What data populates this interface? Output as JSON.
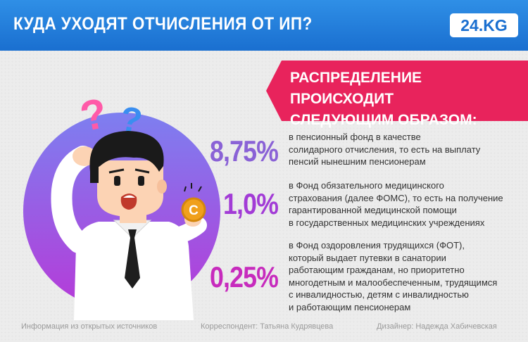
{
  "header": {
    "title": "КУДА УХОДЯТ ОТЧИСЛЕНИЯ ОТ ИП?",
    "logo": "24.KG"
  },
  "banner": {
    "line1": "РАСПРЕДЕЛЕНИЕ ПРОИСХОДИТ",
    "line2": "СЛЕДУЮЩИМ ОБРАЗОМ:"
  },
  "items": [
    {
      "percent": "8,75%",
      "color": "#8a62d6",
      "lines": [
        "в пенсионный фонд в качестве",
        "солидарного отчисления, то есть на выплату",
        "пенсий нынешним пенсионерам"
      ]
    },
    {
      "percent": "1,0%",
      "color": "#a23bd6",
      "lines": [
        "в Фонд обязательного медицинского",
        "страхования (далее ФОМС), то есть на получение",
        "гарантированной медицинской помощи",
        "в государственных медицинских учреждениях"
      ]
    },
    {
      "percent": "0,25%",
      "color": "#c72bbd",
      "lines": [
        "в Фонд оздоровления трудящихся (ФОТ),",
        "который выдает путевки в санатории",
        "работающим гражданам, но приоритетно",
        "многодетным и малообеспеченным, трудящимся",
        "с инвалидностью, детям с инвалидностью",
        "и работающим пенсионерам"
      ]
    }
  ],
  "footer": {
    "source": "Информация из открытых источников",
    "correspondent": "Корреспондент: Татьяна Кудрявцева",
    "designer": "Дизайнер: Надежда Хабичевская"
  },
  "illustration": {
    "question_marks": [
      "?",
      "?"
    ],
    "coin_symbol": "C",
    "colors": {
      "circle_top": "#7d7ff0",
      "circle_bottom": "#b63ad8",
      "pink": "#ff5aa8",
      "blue": "#3a8ef0",
      "coin": "#f0a01c"
    }
  }
}
